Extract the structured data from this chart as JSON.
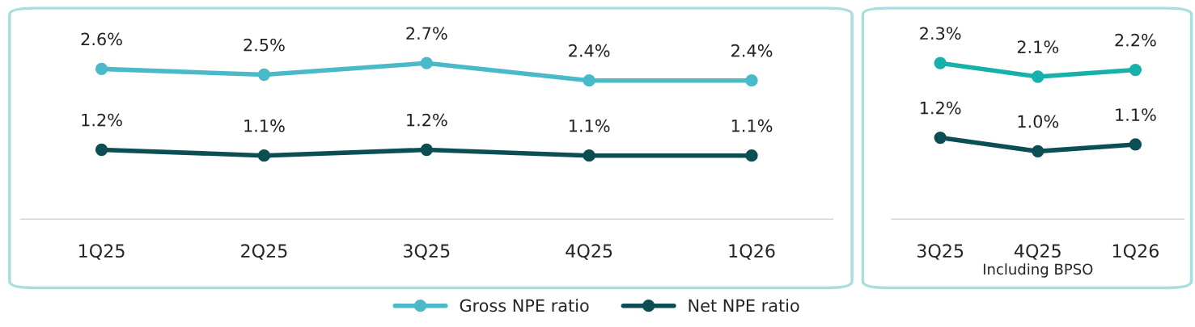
{
  "chart_data": [
    {
      "type": "line",
      "categories": [
        "1Q25",
        "2Q25",
        "3Q25",
        "4Q25",
        "1Q26"
      ],
      "series": [
        {
          "name": "Gross NPE ratio",
          "color": "#4bbac8",
          "values": [
            2.6,
            2.5,
            2.7,
            2.4,
            2.4
          ],
          "value_labels": [
            "2.6%",
            "2.5%",
            "2.7%",
            "2.4%",
            "2.4%"
          ]
        },
        {
          "name": "Net NPE ratio",
          "color": "#0b4f55",
          "values": [
            1.2,
            1.1,
            1.2,
            1.1,
            1.1
          ],
          "value_labels": [
            "1.2%",
            "1.1%",
            "1.2%",
            "1.1%",
            "1.1%"
          ]
        }
      ],
      "marker": "circle",
      "line_style": "solid",
      "grid": false,
      "legend": "bottom",
      "tick_labels": "x"
    },
    {
      "type": "line",
      "categories": [
        "3Q25",
        "4Q25",
        "1Q26"
      ],
      "xlabel": "Including BPSO",
      "series": [
        {
          "color": "#17b1ab",
          "values": [
            2.3,
            2.1,
            2.2
          ],
          "value_labels": [
            "2.3%",
            "2.1%",
            "2.2%"
          ]
        },
        {
          "color": "#0b4f55",
          "values": [
            1.2,
            1.0,
            1.1
          ],
          "value_labels": [
            "1.2%",
            "1.0%",
            "1.1%"
          ]
        }
      ],
      "marker": "circle",
      "line_style": "solid",
      "grid": false,
      "tick_labels": "x"
    }
  ]
}
